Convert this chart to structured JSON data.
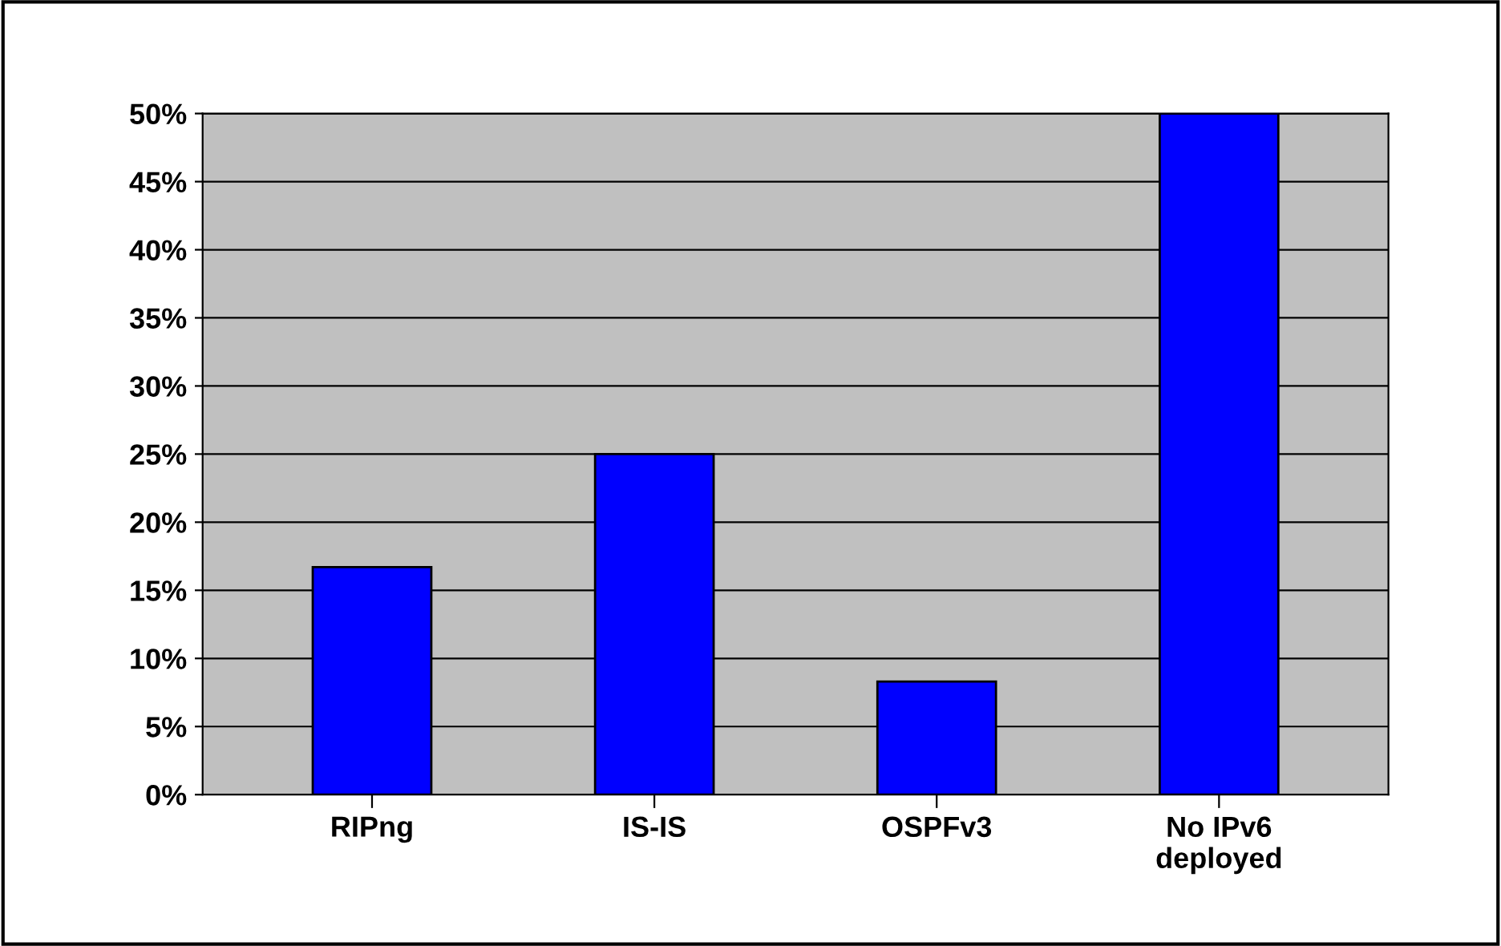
{
  "chart_data": {
    "type": "bar",
    "categories": [
      "RIPng",
      "IS-IS",
      "OSPFv3",
      "No IPv6\ndeployed"
    ],
    "values": [
      16.7,
      25,
      8.3,
      50
    ],
    "color": "#0000ff",
    "ylim": [
      0,
      50
    ],
    "yticks": [
      {
        "value": 0,
        "label": "0%"
      },
      {
        "value": 5,
        "label": "5%"
      },
      {
        "value": 10,
        "label": "10%"
      },
      {
        "value": 15,
        "label": "15%"
      },
      {
        "value": 20,
        "label": "20%"
      },
      {
        "value": 25,
        "label": "25%"
      },
      {
        "value": 30,
        "label": "30%"
      },
      {
        "value": 35,
        "label": "35%"
      },
      {
        "value": 40,
        "label": "40%"
      },
      {
        "value": 45,
        "label": "45%"
      },
      {
        "value": 50,
        "label": "50%"
      }
    ],
    "grid": "y",
    "legend": false
  }
}
